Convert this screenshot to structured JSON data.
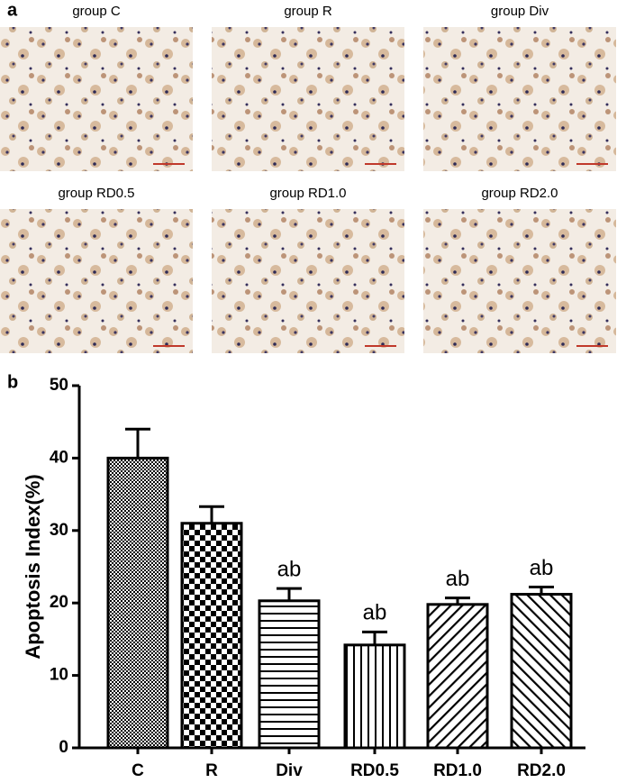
{
  "panel_a": {
    "label": "a",
    "images": [
      "group C",
      "group R",
      "group Div",
      "group RD0.5",
      "group RD1.0",
      "group RD2.0"
    ]
  },
  "chart_data": {
    "type": "bar",
    "panel_label": "b",
    "y_label": "Apoptosis Index(%)",
    "categories": [
      "C",
      "R",
      "Div",
      "RD0.5",
      "RD1.0",
      "RD2.0"
    ],
    "values": [
      40,
      31,
      20.3,
      14.2,
      19.8,
      21.2
    ],
    "errors": [
      4,
      2.3,
      1.7,
      1.8,
      0.9,
      1.0
    ],
    "annotations": [
      null,
      null,
      "ab",
      "ab",
      "ab",
      "ab"
    ],
    "color": "#000000",
    "ylim": [
      0,
      50
    ],
    "yticks": [
      0,
      10,
      20,
      30,
      40,
      50
    ],
    "grid": false
  }
}
